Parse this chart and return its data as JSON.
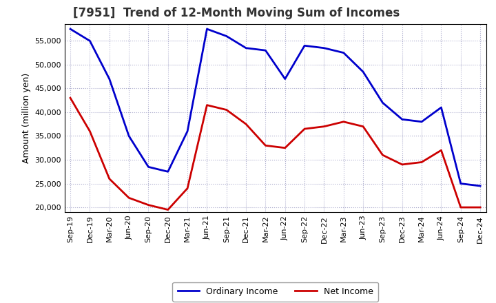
{
  "title": "[7951]  Trend of 12-Month Moving Sum of Incomes",
  "ylabel": "Amount (million yen)",
  "background_color": "#ffffff",
  "grid_color": "#aaaacc",
  "x_labels": [
    "Sep-19",
    "Dec-19",
    "Mar-20",
    "Jun-20",
    "Sep-20",
    "Dec-20",
    "Mar-21",
    "Jun-21",
    "Sep-21",
    "Dec-21",
    "Mar-22",
    "Jun-22",
    "Sep-22",
    "Dec-22",
    "Mar-23",
    "Jun-23",
    "Sep-23",
    "Dec-23",
    "Mar-24",
    "Jun-24",
    "Sep-24",
    "Dec-24"
  ],
  "ordinary_income": [
    57500,
    55000,
    47000,
    35000,
    28500,
    27500,
    36000,
    57500,
    56000,
    53500,
    53000,
    47000,
    54000,
    53500,
    52500,
    48500,
    42000,
    38500,
    38000,
    41000,
    25000,
    24500
  ],
  "net_income": [
    43000,
    36000,
    26000,
    22000,
    20500,
    19500,
    24000,
    41500,
    40500,
    37500,
    33000,
    32500,
    36500,
    37000,
    38000,
    37000,
    31000,
    29000,
    29500,
    32000,
    20000,
    20000
  ],
  "ordinary_color": "#0000cc",
  "net_color": "#cc0000",
  "ylim": [
    19000,
    58500
  ],
  "yticks": [
    20000,
    25000,
    30000,
    35000,
    40000,
    45000,
    50000,
    55000
  ],
  "line_width": 2.0,
  "title_color": "#333333",
  "title_fontsize": 12,
  "tick_fontsize": 8,
  "legend_fontsize": 9
}
